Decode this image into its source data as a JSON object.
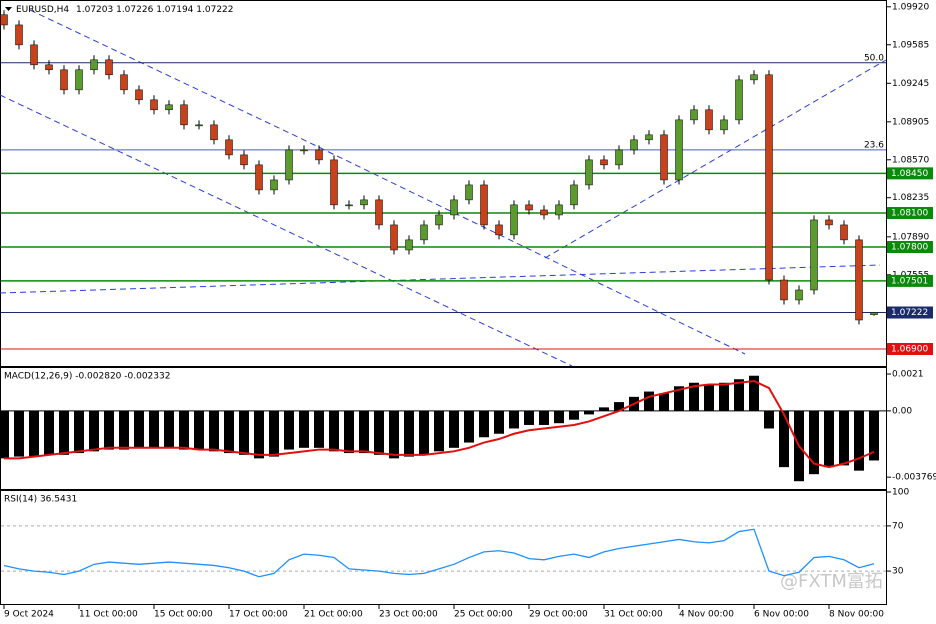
{
  "chart_data": [
    {
      "type": "candlestick",
      "title": "EURUSD,H4",
      "up_color": "#5b9b2e",
      "down_color": "#c8421c",
      "ylim": [
        1.0675,
        1.0998
      ],
      "yticks": [
        {
          "value": 1.0992,
          "label": "1.09920"
        },
        1.09585,
        1.09245,
        1.08905,
        {
          "value": 1.0857,
          "label": "1.08570"
        },
        1.08235,
        {
          "value": 1.0789,
          "label": "1.07890"
        },
        1.07555
      ],
      "levels": [
        {
          "value": 1.0845,
          "label": "1.08450",
          "color": "#0a8a0a"
        },
        {
          "value": 1.081,
          "label": "1.08100",
          "color": "#0a8a0a"
        },
        {
          "value": 1.078,
          "label": "1.07800",
          "color": "#0a8a0a"
        },
        {
          "value": 1.07501,
          "label": "1.07501",
          "color": "#0a8a0a"
        },
        {
          "value": 1.07222,
          "label": "1.07222",
          "color": "#1a2a6a"
        },
        {
          "value": 1.069,
          "label": "1.06900",
          "color": "#e01010"
        }
      ],
      "fib_levels": [
        {
          "value": 1.09426,
          "label": "50.0",
          "color": "#1a2a6a"
        },
        {
          "value": 1.08657,
          "label": "23.6",
          "color": "#4a5ad0"
        }
      ],
      "x_labels": [
        "9 Oct 2024",
        "11 Oct 00:00",
        "15 Oct 00:00",
        "17 Oct 00:00",
        "21 Oct 00:00",
        "23 Oct 00:00",
        "25 Oct 00:00",
        "29 Oct 00:00",
        "31 Oct 00:00",
        "4 Nov 00:00",
        "6 Nov 00:00",
        "8 Nov 00:00"
      ],
      "watermark": "@FXTM富拓",
      "ohlc": [
        [
          1.0985,
          1.0989,
          1.0972,
          1.0976
        ],
        [
          1.0976,
          1.098,
          1.09544,
          1.09584
        ],
        [
          1.09584,
          1.09624,
          1.09368,
          1.09408
        ],
        [
          1.09408,
          1.09448,
          1.09324,
          1.09364
        ],
        [
          1.09364,
          1.09404,
          1.09147,
          1.09187
        ],
        [
          1.09187,
          1.09404,
          1.09147,
          1.09364
        ],
        [
          1.09364,
          1.09492,
          1.09324,
          1.09452
        ],
        [
          1.09452,
          1.09492,
          1.0928,
          1.0932
        ],
        [
          1.0932,
          1.0936,
          1.09147,
          1.09187
        ],
        [
          1.09187,
          1.09227,
          1.09059,
          1.09099
        ],
        [
          1.09099,
          1.09139,
          1.08971,
          1.09011
        ],
        [
          1.09011,
          1.09095,
          1.08971,
          1.09055
        ],
        [
          1.09055,
          1.09095,
          1.08838,
          1.08878
        ],
        [
          1.08878,
          1.08918,
          1.08838,
          1.08878
        ],
        [
          1.08878,
          1.08918,
          1.08706,
          1.08746
        ],
        [
          1.08746,
          1.08786,
          1.08573,
          1.08613
        ],
        [
          1.08613,
          1.08653,
          1.08485,
          1.08525
        ],
        [
          1.08525,
          1.08565,
          1.08264,
          1.08304
        ],
        [
          1.08304,
          1.08432,
          1.08264,
          1.08392
        ],
        [
          1.08392,
          1.08697,
          1.08352,
          1.08657
        ],
        [
          1.08657,
          1.08697,
          1.08617,
          1.08657
        ],
        [
          1.08657,
          1.08697,
          1.08529,
          1.08569
        ],
        [
          1.08569,
          1.08609,
          1.08132,
          1.08172
        ],
        [
          1.08172,
          1.08212,
          1.08132,
          1.08172
        ],
        [
          1.08172,
          1.08256,
          1.08132,
          1.08216
        ],
        [
          1.08216,
          1.08256,
          1.07955,
          1.07995
        ],
        [
          1.07995,
          1.08035,
          1.07734,
          1.07774
        ],
        [
          1.07774,
          1.07903,
          1.07734,
          1.07863
        ],
        [
          1.07863,
          1.08035,
          1.07823,
          1.07995
        ],
        [
          1.07995,
          1.08123,
          1.07955,
          1.08083
        ],
        [
          1.08083,
          1.08256,
          1.08043,
          1.08216
        ],
        [
          1.08216,
          1.08388,
          1.08176,
          1.08348
        ],
        [
          1.08348,
          1.08388,
          1.07955,
          1.07995
        ],
        [
          1.07995,
          1.08035,
          1.07867,
          1.07907
        ],
        [
          1.07907,
          1.08212,
          1.07867,
          1.08172
        ],
        [
          1.08172,
          1.08212,
          1.08087,
          1.08127
        ],
        [
          1.08127,
          1.08167,
          1.08043,
          1.08083
        ],
        [
          1.08083,
          1.08212,
          1.08043,
          1.08172
        ],
        [
          1.08172,
          1.08388,
          1.08132,
          1.08348
        ],
        [
          1.08348,
          1.08609,
          1.08308,
          1.08569
        ],
        [
          1.08569,
          1.08609,
          1.08485,
          1.08525
        ],
        [
          1.08525,
          1.08697,
          1.08485,
          1.08657
        ],
        [
          1.08657,
          1.08786,
          1.08617,
          1.08746
        ],
        [
          1.08746,
          1.0883,
          1.08706,
          1.0879
        ],
        [
          1.0879,
          1.0883,
          1.08352,
          1.08392
        ],
        [
          1.08392,
          1.08962,
          1.08352,
          1.08922
        ],
        [
          1.08922,
          1.09051,
          1.08882,
          1.09011
        ],
        [
          1.09011,
          1.09051,
          1.08794,
          1.08834
        ],
        [
          1.08834,
          1.08962,
          1.08794,
          1.08922
        ],
        [
          1.08922,
          1.09315,
          1.08882,
          1.09275
        ],
        [
          1.09275,
          1.0936,
          1.09235,
          1.0932
        ],
        [
          1.0932,
          1.0936,
          1.07469,
          1.07509
        ],
        [
          1.07509,
          1.07549,
          1.07293,
          1.07333
        ],
        [
          1.07333,
          1.07461,
          1.07293,
          1.07421
        ],
        [
          1.07421,
          1.08079,
          1.07381,
          1.08039
        ],
        [
          1.08039,
          1.08079,
          1.07955,
          1.07995
        ],
        [
          1.07995,
          1.08035,
          1.07823,
          1.07863
        ],
        [
          1.07863,
          1.07903,
          1.07116,
          1.07156
        ],
        [
          1.07203,
          1.07226,
          1.07194,
          1.07222
        ]
      ]
    },
    {
      "type": "macd",
      "title": "MACD(12,26,9) -0.002820 -0.002332",
      "ylim": [
        -0.0045,
        0.00244
      ],
      "yticks": [
        0.0021,
        {
          "value": 0,
          "label": "0.00"
        },
        -0.003769
      ],
      "series": [
        {
          "name": "histogram",
          "color": "#000000",
          "values": [
            -0.0027,
            -0.0026,
            -0.0026,
            -0.0025,
            -0.0025,
            -0.0024,
            -0.0023,
            -0.0022,
            -0.0022,
            -0.0021,
            -0.0021,
            -0.0021,
            -0.0022,
            -0.0022,
            -0.0023,
            -0.0024,
            -0.0025,
            -0.0027,
            -0.0026,
            -0.0022,
            -0.0021,
            -0.0021,
            -0.0023,
            -0.0024,
            -0.0024,
            -0.0025,
            -0.0027,
            -0.0026,
            -0.0025,
            -0.0023,
            -0.0021,
            -0.0018,
            -0.0015,
            -0.0013,
            -0.001,
            -0.0008,
            -0.0008,
            -0.0007,
            -0.0005,
            -0.0002,
            0.0002,
            0.0005,
            0.0008,
            0.0011,
            0.001,
            0.0014,
            0.0016,
            0.0015,
            0.0016,
            0.0018,
            0.002,
            -0.001,
            -0.0032,
            -0.004,
            -0.0036,
            -0.0032,
            -0.0031,
            -0.0034,
            -0.00282
          ]
        },
        {
          "name": "signal",
          "color": "#e01010",
          "values": [
            -0.0027,
            -0.0027,
            -0.0026,
            -0.0025,
            -0.0024,
            -0.0023,
            -0.0022,
            -0.0021,
            -0.0021,
            -0.0021,
            -0.0021,
            -0.0021,
            -0.0021,
            -0.0022,
            -0.0022,
            -0.0023,
            -0.0024,
            -0.0025,
            -0.0025,
            -0.0024,
            -0.0023,
            -0.0022,
            -0.0022,
            -0.0023,
            -0.0023,
            -0.0024,
            -0.0025,
            -0.0025,
            -0.0025,
            -0.0024,
            -0.0023,
            -0.0021,
            -0.0018,
            -0.0016,
            -0.0013,
            -0.0011,
            -0.001,
            -0.0009,
            -0.0008,
            -0.0006,
            -0.0003,
            0,
            0.0004,
            0.0008,
            0.001,
            0.0012,
            0.0014,
            0.0015,
            0.0015,
            0.0016,
            0.0017,
            0.0013,
            -0.0002,
            -0.002,
            -0.003,
            -0.0032,
            -0.003,
            -0.0027,
            -0.002332
          ]
        }
      ]
    },
    {
      "type": "line",
      "title": "RSI(14) 36.5431",
      "ylim": [
        0,
        100
      ],
      "yticks": [
        100,
        70,
        30
      ],
      "dashed_levels": [
        70,
        30
      ],
      "color": "#1e90ff",
      "values": [
        35,
        32,
        30,
        29,
        27,
        30,
        36,
        38,
        37,
        36,
        37,
        38,
        37,
        36,
        35,
        33,
        30,
        25,
        28,
        40,
        45,
        44,
        42,
        32,
        31,
        30,
        28,
        27,
        28,
        32,
        36,
        42,
        47,
        48,
        46,
        41,
        40,
        43,
        45,
        42,
        47,
        50,
        52,
        54,
        56,
        58,
        56,
        55,
        57,
        65,
        67,
        30,
        26,
        29,
        42,
        43,
        40,
        33,
        36.5431
      ]
    }
  ]
}
